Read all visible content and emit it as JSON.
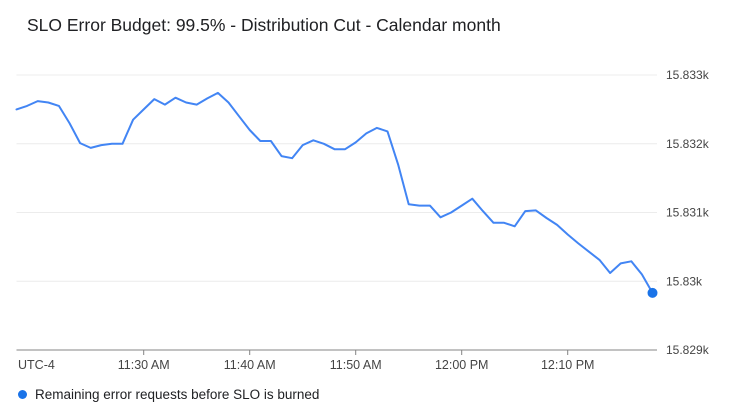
{
  "chart_data": {
    "type": "line",
    "title": "SLO Error Budget: 99.5% - Distribution Cut - Calendar month",
    "grid": true,
    "x_axis": {
      "timezone_label": "UTC-4",
      "start_time": "11:18 AM",
      "end_time": "12:18 PM",
      "interval_minutes": 1,
      "ticks": [
        {
          "label": "11:30 AM",
          "minute_offset": 12
        },
        {
          "label": "11:40 AM",
          "minute_offset": 22
        },
        {
          "label": "11:50 AM",
          "minute_offset": 32
        },
        {
          "label": "12:00 PM",
          "minute_offset": 42
        },
        {
          "label": "12:10 PM",
          "minute_offset": 52
        }
      ]
    },
    "y_axis": {
      "side": "right",
      "min": 15829,
      "max": 15833,
      "unit": "requests",
      "ticks": [
        {
          "label": "15.833k",
          "value": 15833
        },
        {
          "label": "15.832k",
          "value": 15832
        },
        {
          "label": "15.831k",
          "value": 15831
        },
        {
          "label": "15.83k",
          "value": 15830
        },
        {
          "label": "15.829k",
          "value": 15829
        }
      ]
    },
    "series": [
      {
        "name": "Remaining error requests before SLO is burned",
        "color": "#4285f4",
        "marker_color": "#1a73e8",
        "end_point_marker": true,
        "values": [
          15832.5,
          15832.55,
          15832.62,
          15832.6,
          15832.55,
          15832.3,
          15832.01,
          15831.94,
          15831.98,
          15832.0,
          15832.0,
          15832.35,
          15832.5,
          15832.65,
          15832.57,
          15832.67,
          15832.6,
          15832.57,
          15832.66,
          15832.74,
          15832.6,
          15832.4,
          15832.2,
          15832.04,
          15832.04,
          15831.82,
          15831.79,
          15831.98,
          15832.05,
          15832.0,
          15831.92,
          15831.92,
          15832.02,
          15832.15,
          15832.23,
          15832.18,
          15831.7,
          15831.12,
          15831.1,
          15831.1,
          15830.93,
          15831.0,
          15831.1,
          15831.2,
          15831.02,
          15830.85,
          15830.85,
          15830.8,
          15831.02,
          15831.03,
          15830.92,
          15830.82,
          15830.68,
          15830.55,
          15830.43,
          15830.31,
          15830.12,
          15830.26,
          15830.29,
          15830.1,
          15829.83
        ]
      }
    ]
  },
  "legend": {
    "items": [
      {
        "label": "Remaining error requests before SLO is burned",
        "color": "#1a73e8"
      }
    ]
  }
}
